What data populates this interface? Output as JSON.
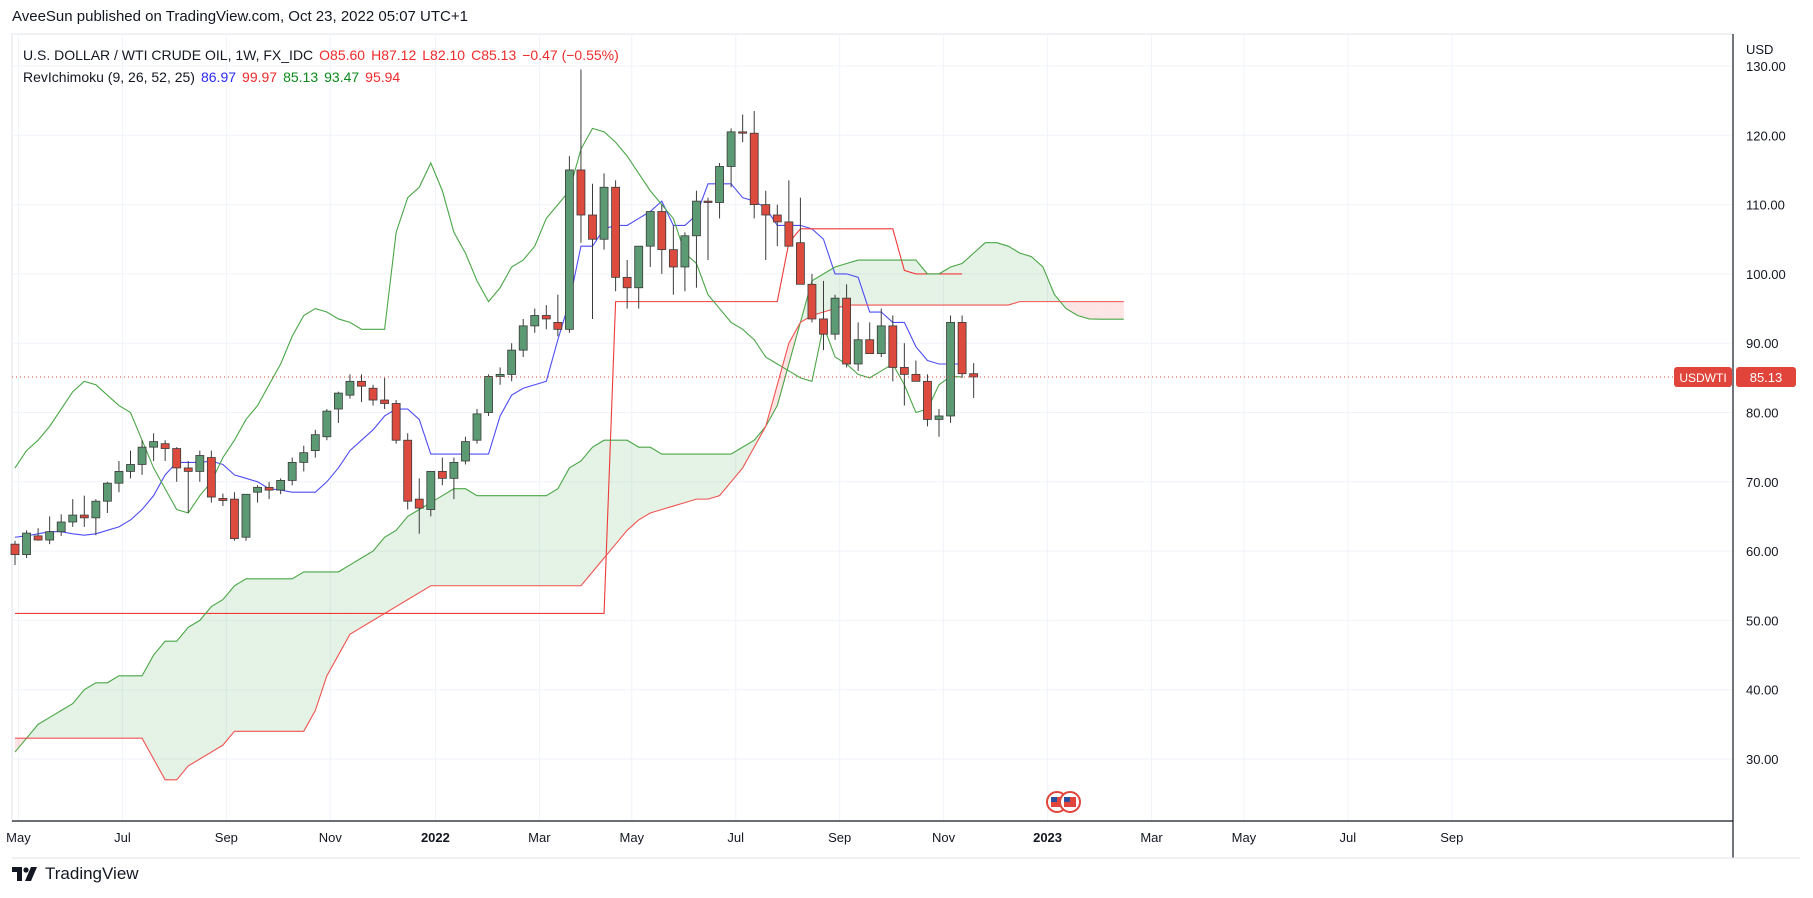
{
  "header": {
    "publish_line": "AveeSun published on TradingView.com, Oct 23, 2022 05:07 UTC+1"
  },
  "legend": {
    "symbol": "U.S. DOLLAR / WTI CRUDE OIL, 1W, FX_IDC",
    "open": "O85.60",
    "high": "H87.12",
    "low": "L82.10",
    "close": "C85.13",
    "change": "−0.47 (−0.55%)",
    "indicator_name": "RevIchimoku (9, 26, 52, 25)",
    "tenkan": "86.97",
    "kijun": "99.97",
    "chikou": "85.13",
    "span_a": "93.47",
    "span_b": "95.94"
  },
  "colors": {
    "up": "#5b9a72",
    "down": "#dd4a3e",
    "tenkan": "#4d4df5",
    "kijun": "#ef3a3a",
    "span_a": "#4aa646",
    "span_b": "#ef5350",
    "cloud_bull": "rgba(76,175,80,0.15)",
    "cloud_bear": "rgba(239,83,80,0.15)",
    "price_tag": "#e0443a"
  },
  "price_tag": {
    "symbol": "USDWTI",
    "value": "85.13"
  },
  "footer": {
    "brand": "TradingView"
  },
  "chart_data": {
    "type": "candlestick",
    "title": "U.S. DOLLAR / WTI CRUDE OIL, 1W, FX_IDC",
    "ylabel": "USD",
    "ylim": [
      20.5,
      131
    ],
    "y_ticks": [
      "30.00",
      "40.00",
      "50.00",
      "60.00",
      "70.00",
      "80.00",
      "90.00",
      "100.00",
      "110.00",
      "120.00",
      "130.00"
    ],
    "x_ticks": [
      "May",
      "Jul",
      "Sep",
      "Nov",
      "2022",
      "Mar",
      "May",
      "Jul",
      "Sep",
      "Nov",
      "2023",
      "Mar",
      "May",
      "Jul",
      "Sep"
    ],
    "x_tick_weeks": [
      0.3,
      9.3,
      18.3,
      27.3,
      36.4,
      45.4,
      53.4,
      62.4,
      71.4,
      80.4,
      89.4,
      98.4,
      106.4,
      115.4,
      124.4
    ],
    "x_axis_note": "week index 0 = week of 2021-04-26; weekly candles",
    "current_price": 85.13,
    "candles": [
      [
        61,
        61.5,
        58,
        59.5
      ],
      [
        59.5,
        63,
        59,
        62.6
      ],
      [
        62.2,
        63.3,
        61.5,
        61.6
      ],
      [
        61.6,
        65,
        61,
        62.8
      ],
      [
        62.8,
        65.3,
        62.2,
        64.2
      ],
      [
        64.2,
        67.5,
        63.5,
        65.2
      ],
      [
        65.2,
        68,
        63.5,
        64.8
      ],
      [
        64.8,
        67.5,
        62.3,
        67.2
      ],
      [
        67.2,
        70,
        65.5,
        69.8
      ],
      [
        69.8,
        73,
        68.5,
        71.5
      ],
      [
        71.5,
        74.5,
        70.5,
        72.5
      ],
      [
        72.5,
        76,
        71,
        75
      ],
      [
        75,
        77,
        73,
        75.8
      ],
      [
        75.5,
        76,
        73,
        74.8
      ],
      [
        74.8,
        75,
        70,
        72
      ],
      [
        72,
        73,
        65.5,
        71.5
      ],
      [
        71.5,
        74.5,
        70,
        73.8
      ],
      [
        73.5,
        74.5,
        67,
        67.8
      ],
      [
        67.6,
        68.3,
        66.5,
        67.3
      ],
      [
        67.5,
        68.5,
        61.5,
        61.8
      ],
      [
        62,
        68,
        61.5,
        68.2
      ],
      [
        68.5,
        69.5,
        67,
        69.2
      ],
      [
        69.2,
        70,
        67.5,
        68.8
      ],
      [
        68.8,
        70.5,
        68.2,
        70.2
      ],
      [
        70.2,
        73.5,
        69.5,
        72.8
      ],
      [
        72.8,
        75.2,
        71.5,
        74.2
      ],
      [
        74.5,
        77.5,
        73.5,
        76.8
      ],
      [
        76.5,
        80.5,
        76,
        80.2
      ],
      [
        80.5,
        83,
        78.5,
        82.8
      ],
      [
        82.5,
        85.5,
        82,
        84.5
      ],
      [
        84.5,
        85.5,
        81.5,
        83.8
      ],
      [
        83.5,
        84,
        81,
        81.8
      ],
      [
        81.8,
        85,
        80.5,
        81.3
      ],
      [
        81.3,
        81.8,
        75.5,
        76
      ],
      [
        76,
        77,
        66,
        67.2
      ],
      [
        67.5,
        70.5,
        62.5,
        66.2
      ],
      [
        66,
        71,
        65,
        71.5
      ],
      [
        71.5,
        73.5,
        69.5,
        70.5
      ],
      [
        70.5,
        73.5,
        67.5,
        72.8
      ],
      [
        73,
        76.5,
        72.5,
        75.8
      ],
      [
        76,
        80.5,
        75.5,
        79.8
      ],
      [
        80,
        85.5,
        79.5,
        85.2
      ],
      [
        85.2,
        86.5,
        84,
        85.5
      ],
      [
        85.5,
        90,
        84.5,
        89
      ],
      [
        89,
        93.5,
        88,
        92.5
      ],
      [
        92.5,
        95,
        91.5,
        94
      ],
      [
        94,
        95.5,
        92,
        93.5
      ],
      [
        93,
        97,
        91,
        92
      ],
      [
        92,
        117,
        91.5,
        115
      ],
      [
        115,
        129.5,
        104.5,
        108.5
      ],
      [
        108.5,
        113,
        93.5,
        105
      ],
      [
        105,
        114.5,
        103.5,
        112.5
      ],
      [
        112.5,
        113.5,
        97.5,
        99.5
      ],
      [
        99.5,
        102,
        95,
        98
      ],
      [
        98,
        103,
        95,
        104
      ],
      [
        104,
        109,
        101,
        109
      ],
      [
        109,
        110,
        100,
        103.5
      ],
      [
        103.5,
        107,
        97,
        101
      ],
      [
        101,
        106,
        97.5,
        105.5
      ],
      [
        105.5,
        112,
        98,
        110.5
      ],
      [
        110.5,
        111,
        102,
        110.3
      ],
      [
        110.3,
        116,
        108,
        115.5
      ],
      [
        115.5,
        121,
        112.5,
        120.5
      ],
      [
        120.5,
        123,
        119,
        120.3
      ],
      [
        120.3,
        123.5,
        108,
        110
      ],
      [
        110,
        112,
        102,
        108.5
      ],
      [
        108.5,
        110,
        104,
        107.5
      ],
      [
        107.5,
        113.5,
        104,
        104
      ],
      [
        104.5,
        111,
        99,
        98.5
      ],
      [
        98.5,
        100,
        93,
        93.5
      ],
      [
        93.5,
        99,
        89,
        91.3
      ],
      [
        91.3,
        97,
        90.5,
        96.5
      ],
      [
        96.5,
        98.5,
        86.5,
        87
      ],
      [
        87,
        93,
        86,
        90.5
      ],
      [
        90.5,
        93,
        88.5,
        88.5
      ],
      [
        88.5,
        95,
        88,
        92.5
      ],
      [
        92.5,
        94,
        84.5,
        86.5
      ],
      [
        86.5,
        90,
        81,
        85.5
      ],
      [
        85.5,
        87.5,
        84.5,
        84.5
      ],
      [
        84.5,
        85.5,
        78,
        79
      ],
      [
        79,
        80.5,
        76.5,
        79.5
      ],
      [
        79.5,
        94,
        78.5,
        93
      ],
      [
        93,
        94,
        85,
        85.6
      ],
      [
        85.6,
        87.12,
        82.1,
        85.13
      ]
    ],
    "series": [
      {
        "name": "Tenkan (9)",
        "start": 0,
        "values": [
          62,
          62.2,
          62.5,
          62.8,
          62.8,
          62.5,
          62.3,
          62.5,
          63,
          63.5,
          64.5,
          66,
          68,
          71,
          72.8,
          72.8,
          72.8,
          73,
          72.5,
          71,
          70.5,
          70,
          69,
          68.8,
          68.5,
          68.5,
          68.5,
          70,
          72,
          74.5,
          76,
          77.5,
          79.5,
          80.5,
          80.5,
          79,
          74,
          74,
          74,
          74,
          74,
          74,
          79.5,
          82.5,
          83.5,
          84,
          84.5,
          90.5,
          96,
          104,
          104,
          106.5,
          107,
          107,
          108,
          109,
          110.5,
          107,
          107,
          108.5,
          113,
          113,
          113,
          111,
          110.5,
          109.5,
          107,
          107,
          107,
          106.5,
          105,
          100,
          100,
          99.5,
          94.5,
          94.5,
          93,
          93,
          89.5,
          87.5,
          87,
          87,
          87
        ]
      },
      {
        "name": "Kijun (26)",
        "start": 0,
        "values": [
          51,
          51,
          51,
          51,
          51,
          51,
          51,
          51,
          51,
          51,
          51,
          51,
          51,
          51,
          51,
          51,
          51,
          51,
          51,
          51,
          51,
          51,
          51,
          51,
          51,
          51,
          51,
          51,
          51,
          51,
          51,
          51,
          51,
          51,
          51,
          51,
          51,
          51,
          51,
          51,
          51,
          51,
          51,
          51,
          51,
          51,
          51,
          51,
          51,
          51,
          51,
          51,
          96,
          96,
          96,
          96,
          96,
          96,
          96,
          96,
          96,
          96,
          96,
          96,
          96,
          96,
          96,
          104.5,
          106.5,
          106.5,
          106.5,
          106.5,
          106.5,
          106.5,
          106.5,
          106.5,
          106.5,
          100.5,
          100,
          100,
          100,
          100,
          100
        ]
      },
      {
        "name": "Chikou",
        "start": 0,
        "values": [
          72,
          74.5,
          76,
          78,
          80.5,
          83,
          84.5,
          84,
          82.5,
          81,
          80,
          76,
          72,
          69,
          66,
          65.5,
          68,
          70,
          73.5,
          76,
          79,
          81,
          84,
          87,
          91,
          94,
          95,
          94.5,
          93.5,
          93,
          92,
          92,
          92,
          106,
          111,
          112.5,
          116,
          112,
          106,
          103,
          99,
          96,
          98,
          101,
          102,
          104,
          108,
          110,
          112,
          118,
          121,
          120.5,
          119,
          117,
          114.5,
          112,
          110,
          108,
          103,
          101.5,
          97,
          95,
          93,
          92,
          90.5,
          88,
          87,
          86,
          85,
          84.5,
          92.5,
          88,
          87,
          85.5,
          85,
          86,
          87,
          84,
          80,
          80.5,
          84,
          85.2,
          85.13
        ]
      },
      {
        "name": "Senkou Span A",
        "start": 0,
        "values": [
          31,
          33,
          35,
          36,
          37,
          38,
          40,
          41,
          41,
          42,
          42,
          42,
          45,
          47,
          47,
          49,
          50,
          52,
          53,
          55,
          56,
          56,
          56,
          56,
          56,
          57,
          57,
          57,
          57,
          58,
          59,
          60,
          62,
          63,
          65,
          66,
          67,
          68,
          69,
          69,
          68,
          68,
          68,
          68,
          68,
          68,
          68,
          69,
          72,
          73,
          75,
          76,
          76,
          76,
          75,
          75,
          74,
          74,
          74,
          74,
          74,
          74,
          74,
          75,
          76,
          78,
          81,
          87,
          93,
          99,
          100,
          101,
          101.5,
          102,
          102,
          102,
          102,
          102,
          102,
          100,
          100,
          101,
          101.5,
          103,
          104.5,
          104.5,
          104,
          103,
          102.5,
          101,
          97,
          95,
          94,
          93.5,
          93.47,
          93.47,
          93.47
        ]
      },
      {
        "name": "Senkou Span B",
        "start": 0,
        "values": [
          33,
          33,
          33,
          33,
          33,
          33,
          33,
          33,
          33,
          33,
          33,
          33,
          30,
          27,
          27,
          29,
          30,
          31,
          32,
          34,
          34,
          34,
          34,
          34,
          34,
          34,
          37,
          42,
          45,
          48,
          49,
          50,
          51,
          52,
          53,
          54,
          55,
          55,
          55,
          55,
          55,
          55,
          55,
          55,
          55,
          55,
          55,
          55,
          55,
          55,
          57,
          59,
          61,
          63,
          64.5,
          65.5,
          66,
          66.5,
          67,
          67.5,
          67.5,
          68,
          70,
          72,
          75,
          78,
          84,
          90,
          93,
          94,
          94.5,
          95,
          95.5,
          95.5,
          95.5,
          95.5,
          95.5,
          95.5,
          95.5,
          95.5,
          95.5,
          95.5,
          95.5,
          95.5,
          95.5,
          95.5,
          95.5,
          96,
          96,
          96,
          96,
          96,
          96,
          96,
          96,
          96,
          96
        ]
      }
    ],
    "cloud_start_week": 0,
    "legend": "top-left",
    "grid": true
  }
}
